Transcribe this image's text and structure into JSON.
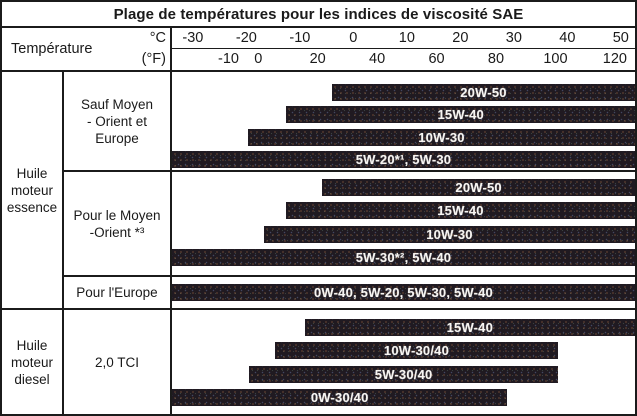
{
  "title": "Plage de températures pour les indices de viscosité SAE",
  "header": {
    "temperature_label": "Température",
    "unit_c": "°C",
    "unit_f": "(°F)"
  },
  "colors": {
    "background": "#ffffff",
    "border": "#1b1b1b",
    "bar_background": "#201a21",
    "bar_text": "#f7f5f2"
  },
  "chart_data": {
    "type": "bar",
    "orientation": "horizontal-range",
    "title": "Plage de températures pour les indices de viscosité SAE",
    "x_axis": {
      "unit_top": "°C",
      "unit_bottom": "(°F)",
      "ticks_c": [
        -30,
        -20,
        -10,
        0,
        10,
        20,
        30,
        40,
        50
      ],
      "ticks_f": [
        -10,
        0,
        20,
        40,
        60,
        80,
        100,
        120
      ],
      "range_c": [
        -33.9,
        52.65
      ],
      "grid": false
    },
    "groups": [
      {
        "oil_type": "Huile moteur essence",
        "oil_lines": [
          "Huile",
          "moteur",
          "essence"
        ],
        "rows": [
          {
            "category": "Sauf Moyen - Orient et Europe",
            "category_lines": [
              "Sauf Moyen",
              "- Orient et",
              "Europe"
            ],
            "bars": [
              {
                "label": "20W-50",
                "from_c": -4,
                "to_c": 52.65
              },
              {
                "label": "15W-40",
                "from_c": -12.5,
                "to_c": 52.65
              },
              {
                "label": "10W-30",
                "from_c": -19.7,
                "to_c": 52.65
              },
              {
                "label": "5W-20*¹, 5W-30",
                "from_c": -33.9,
                "to_c": 52.65
              }
            ]
          },
          {
            "category": "Pour le Moyen -Orient *³",
            "category_lines": [
              "Pour le Moyen",
              "-Orient *³"
            ],
            "bars": [
              {
                "label": "20W-50",
                "from_c": -5.8,
                "to_c": 52.65
              },
              {
                "label": "15W-40",
                "from_c": -12.6,
                "to_c": 52.65
              },
              {
                "label": "10W-30",
                "from_c": -16.7,
                "to_c": 52.65
              },
              {
                "label": "5W-30*², 5W-40",
                "from_c": -33.9,
                "to_c": 52.65
              }
            ]
          },
          {
            "category": "Pour l'Europe",
            "category_lines": [
              "Pour l'Europe"
            ],
            "bars": [
              {
                "label": "0W-40, 5W-20, 5W-30, 5W-40",
                "from_c": -33.9,
                "to_c": 52.65
              }
            ]
          }
        ]
      },
      {
        "oil_type": "Huile moteur diesel",
        "oil_lines": [
          "Huile",
          "moteur",
          "diesel"
        ],
        "rows": [
          {
            "category": "2,0 TCI",
            "category_lines": [
              "2,0 TCI"
            ],
            "bars": [
              {
                "label": "15W-40",
                "from_c": -9.1,
                "to_c": 52.65
              },
              {
                "label": "10W-30/40",
                "from_c": -14.7,
                "to_c": 38.3
              },
              {
                "label": "5W-30/40",
                "from_c": -19.5,
                "to_c": 38.3
              },
              {
                "label": "0W-30/40",
                "from_c": -33.9,
                "to_c": 28.8
              }
            ]
          }
        ]
      }
    ]
  }
}
